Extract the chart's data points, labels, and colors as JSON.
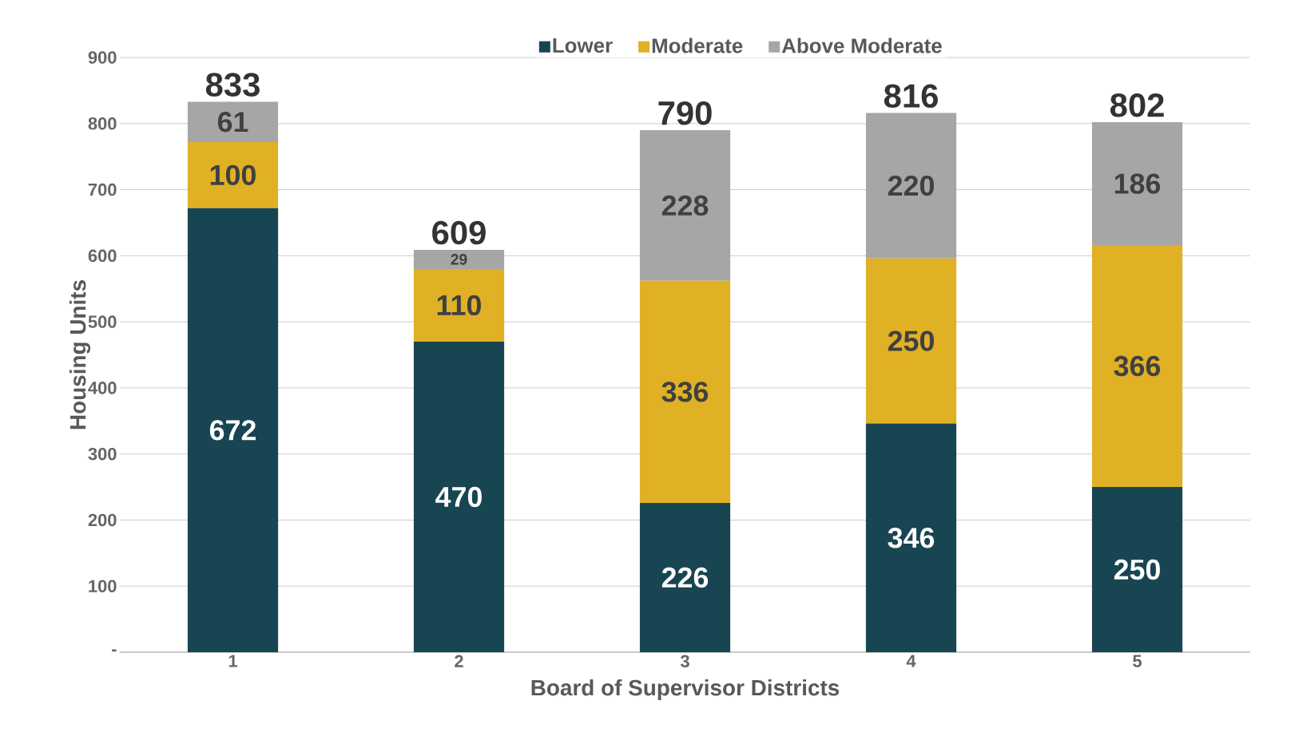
{
  "chart_data": {
    "type": "bar",
    "stacked": true,
    "xlabel": "Board of Supervisor Districts",
    "ylabel": "Housing Units",
    "categories": [
      "1",
      "2",
      "3",
      "4",
      "5"
    ],
    "series": [
      {
        "name": "Lower",
        "color": "#184552",
        "values": [
          672,
          470,
          226,
          346,
          250
        ]
      },
      {
        "name": "Moderate",
        "color": "#e0b025",
        "values": [
          100,
          110,
          336,
          250,
          366
        ]
      },
      {
        "name": "Above Moderate",
        "color": "#a6a6a6",
        "values": [
          61,
          29,
          228,
          220,
          186
        ]
      }
    ],
    "totals": [
      "833",
      "609",
      "790",
      "816",
      "802"
    ],
    "data_labels": true,
    "ylim": [
      0,
      900
    ],
    "yticks": [
      {
        "value": 0,
        "label": "-"
      },
      100,
      200,
      300,
      400,
      500,
      600,
      700,
      800,
      900
    ],
    "grid": "y",
    "legend": "top"
  }
}
